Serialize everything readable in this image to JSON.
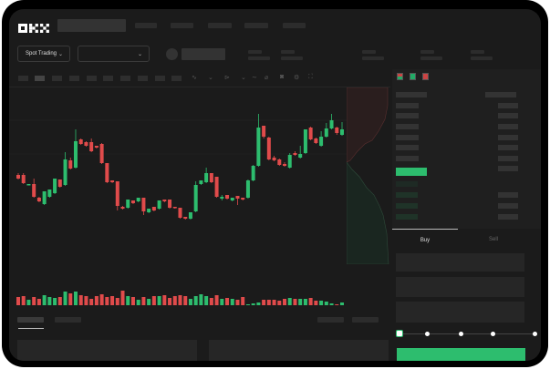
{
  "header": {
    "logo": "OKX"
  },
  "market": {
    "mode_dropdown": "Spot Trading",
    "pair_dropdown": ""
  },
  "orderbook": {
    "view_icons": [
      "buy-sell-book-icon",
      "buy-book-icon",
      "sell-book-icon"
    ]
  },
  "trade": {
    "tabs": [
      "Buy",
      "Sell"
    ],
    "active_tab": "Buy",
    "slider_percent": 0,
    "slider_marks": [
      0,
      25,
      50,
      75,
      100
    ]
  },
  "colors": {
    "up": "#2dbd6e",
    "down": "#e04b4b",
    "background": "#1b1b1b"
  },
  "chart_data": {
    "type": "candlestick",
    "title": "",
    "xlabel": "",
    "ylabel": "",
    "grid": true,
    "candles": [
      [
        68,
        64,
        70,
        63
      ],
      [
        68,
        59,
        70,
        58
      ],
      [
        57,
        58,
        58,
        57
      ],
      [
        58,
        44,
        64,
        43
      ],
      [
        43,
        39,
        44,
        38
      ],
      [
        36,
        50,
        50,
        35
      ],
      [
        44,
        52,
        52,
        43
      ],
      [
        48,
        64,
        64,
        47
      ],
      [
        63,
        55,
        63,
        54
      ],
      [
        57,
        85,
        93,
        56
      ],
      [
        84,
        75,
        87,
        74
      ],
      [
        76,
        105,
        118,
        75
      ],
      [
        107,
        102,
        108,
        101
      ],
      [
        104,
        100,
        105,
        99
      ],
      [
        104,
        94,
        108,
        93
      ],
      [
        100,
        98,
        100,
        97
      ],
      [
        102,
        81,
        103,
        80
      ],
      [
        81,
        60,
        81,
        59
      ],
      [
        62,
        60,
        62,
        59
      ],
      [
        61,
        34,
        61,
        29
      ],
      [
        33,
        31,
        34,
        30
      ],
      [
        32,
        41,
        41,
        31
      ],
      [
        40,
        37,
        40,
        36
      ],
      [
        39,
        43,
        43,
        38
      ],
      [
        43,
        28,
        43,
        24
      ],
      [
        27,
        31,
        31,
        26
      ],
      [
        33,
        29,
        33,
        28
      ],
      [
        31,
        40,
        40,
        30
      ],
      [
        41,
        39,
        41,
        38
      ],
      [
        41,
        32,
        41,
        31
      ],
      [
        33,
        32,
        33,
        31
      ],
      [
        32,
        21,
        32,
        20
      ],
      [
        22,
        20,
        22,
        19
      ],
      [
        20,
        27,
        27,
        19
      ],
      [
        28,
        57,
        61,
        27
      ],
      [
        58,
        62,
        62,
        57
      ],
      [
        60,
        70,
        76,
        59
      ],
      [
        70,
        60,
        70,
        59
      ],
      [
        66,
        44,
        66,
        43
      ],
      [
        42,
        44,
        46,
        40
      ],
      [
        46,
        42,
        46,
        41
      ],
      [
        40,
        43,
        43,
        39
      ],
      [
        45,
        42,
        45,
        35
      ],
      [
        43,
        41,
        43,
        40
      ],
      [
        43,
        62,
        63,
        42
      ],
      [
        62,
        78,
        79,
        61
      ],
      [
        78,
        120,
        135,
        77
      ],
      [
        122,
        110,
        122,
        108
      ],
      [
        109,
        85,
        110,
        84
      ],
      [
        87,
        84,
        89,
        83
      ],
      [
        85,
        79,
        86,
        78
      ],
      [
        80,
        78,
        82,
        77
      ],
      [
        76,
        90,
        92,
        75
      ],
      [
        92,
        90,
        94,
        89
      ],
      [
        87,
        91,
        100,
        86
      ],
      [
        92,
        118,
        118,
        91
      ],
      [
        120,
        107,
        121,
        106
      ],
      [
        108,
        103,
        109,
        102
      ],
      [
        100,
        110,
        116,
        99
      ],
      [
        110,
        119,
        125,
        109
      ],
      [
        119,
        128,
        135,
        118
      ],
      [
        120,
        114,
        121,
        112
      ],
      [
        112,
        118,
        126,
        111
      ]
    ],
    "volume": [
      9,
      10,
      6,
      9,
      7,
      11,
      9,
      8,
      9,
      15,
      13,
      15,
      11,
      10,
      7,
      10,
      12,
      9,
      10,
      8,
      16,
      10,
      9,
      6,
      9,
      7,
      10,
      10,
      11,
      8,
      10,
      11,
      10,
      7,
      10,
      12,
      10,
      8,
      11,
      7,
      8,
      7,
      6,
      9,
      1,
      2,
      3,
      6,
      6,
      6,
      5,
      7,
      8,
      7,
      7,
      7,
      8,
      5,
      5,
      4,
      2,
      1,
      3
    ]
  }
}
